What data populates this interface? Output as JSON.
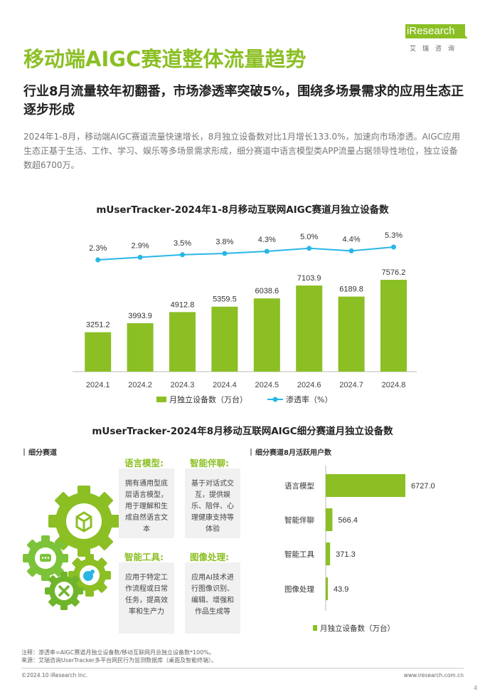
{
  "brand": {
    "logo_text": "iResearch",
    "logo_cn": "艾瑞咨询",
    "accent": "#8bbf24",
    "line_color": "#29b6e6"
  },
  "page": {
    "title": "移动端AIGC赛道整体流量趋势",
    "subtitle": "行业8月流量较年初翻番，市场渗透率突破5%，围绕多场景需求的应用生态正逐步形成",
    "intro": "2024年1-8月，移动端AIGC赛道流量快速增长，8月独立设备数对比1月增长133.0%，加速向市场渗透。AIGC应用生态正基于生活、工作、学习、娱乐等多场景需求形成，细分赛道中语言模型类APP流量占据领导性地位，独立设备数超6700万。"
  },
  "chart_data": [
    {
      "type": "bar",
      "title": "mUserTracker-2024年1-8月移动互联网AIGC赛道月独立设备数",
      "categories": [
        "2024.1",
        "2024.2",
        "2024.3",
        "2024.4",
        "2024.5",
        "2024.6",
        "2024.7",
        "2024.8"
      ],
      "series": [
        {
          "name": "月独立设备数（万台）",
          "type": "bar",
          "values": [
            3251.2,
            3993.9,
            4912.8,
            5359.5,
            6038.6,
            7103.9,
            6189.8,
            7576.2
          ],
          "labels": [
            "3251.2",
            "3993.9",
            "4912.8",
            "5359.5",
            "6038.6",
            "7103.9",
            "6189.8",
            "7576.2"
          ]
        },
        {
          "name": "渗透率（%）",
          "type": "line",
          "values": [
            2.3,
            2.9,
            3.5,
            3.8,
            4.3,
            5.0,
            4.4,
            5.3
          ],
          "labels": [
            "2.3%",
            "2.9%",
            "3.5%",
            "3.8%",
            "4.3%",
            "5.0%",
            "4.4%",
            "5.3%"
          ]
        }
      ],
      "legend": "bottom"
    },
    {
      "type": "bar",
      "orientation": "horizontal",
      "title": "mUserTracker-2024年8月移动互联网AIGC细分赛道月独立设备数",
      "section_label": "细分赛道8月活跃用户数",
      "categories": [
        "语言模型",
        "智能伴聊",
        "智能工具",
        "图像处理"
      ],
      "series": [
        {
          "name": "月独立设备数（万台）",
          "values": [
            6727.0,
            566.4,
            371.3,
            43.9
          ],
          "labels": [
            "6727.0",
            "566.4",
            "371.3",
            "43.9"
          ]
        }
      ],
      "legend": "bottom"
    }
  ],
  "segments": {
    "section_label": "细分赛道",
    "items": [
      {
        "name": "语言模型:",
        "desc": "拥有通用型底层语言模型，用于理解和生成自然语言文本"
      },
      {
        "name": "智能伴聊:",
        "desc": "基于对话式交互，提供娱乐、陪伴、心理健康支持等体验"
      },
      {
        "name": "智能工具:",
        "desc": "应用于特定工作流程或日常任务，提高效率和生产力"
      },
      {
        "name": "图像处理:",
        "desc": "应用AI技术进行图像识别、编辑、增强和作品生成等"
      }
    ]
  },
  "footer": {
    "note": "注释：渗透率=AIGC赛道月独立设备数/移动互联网月总独立设备数*100%。",
    "source": "来源：艾瑞咨询UserTracker多平台网民行为监测数据库（桌面及智能终端）。",
    "copyright": "©2024.10 iResearch Inc.",
    "site": "www.iresearch.com.cn",
    "page_number": "4"
  }
}
